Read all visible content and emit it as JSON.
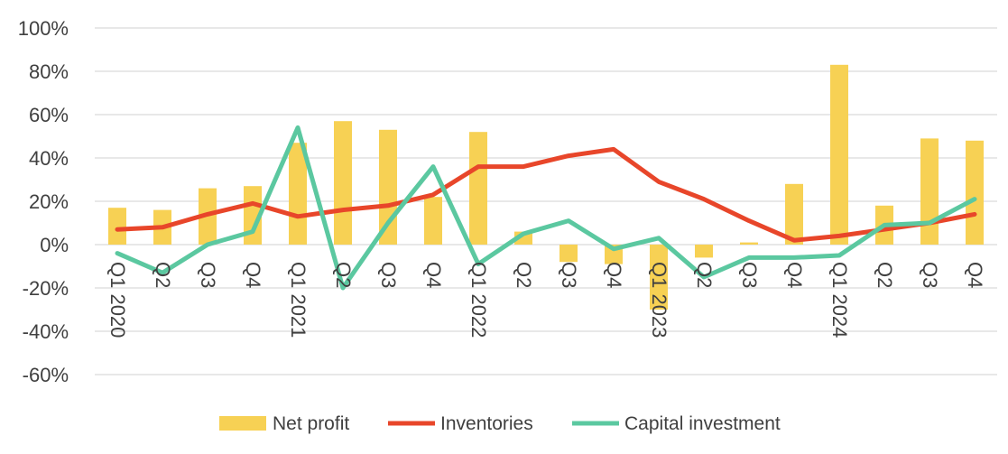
{
  "chart_data": {
    "type": "bar+line",
    "title": "",
    "xlabel": "",
    "ylabel": "",
    "ylim": [
      -60,
      100
    ],
    "yticks": [
      -60,
      -40,
      -20,
      0,
      20,
      40,
      60,
      80,
      100
    ],
    "ytick_labels": [
      "-60%",
      "-40%",
      "-20%",
      "0%",
      "20%",
      "40%",
      "60%",
      "80%",
      "100%"
    ],
    "grid": true,
    "legend_position": "bottom",
    "categories": [
      "Q1 2020",
      "Q2",
      "Q3",
      "Q4",
      "Q1 2021",
      "Q2",
      "Q3",
      "Q4",
      "Q1 2022",
      "Q2",
      "Q3",
      "Q4",
      "Q1 2023",
      "Q2",
      "Q3",
      "Q4",
      "Q1 2024",
      "Q2",
      "Q3",
      "Q4"
    ],
    "series": [
      {
        "name": "Net profit",
        "kind": "bar",
        "color": "#F7D154",
        "values": [
          17,
          16,
          26,
          27,
          47,
          57,
          53,
          22,
          52,
          6,
          -8,
          -9,
          -30,
          -6,
          1,
          28,
          83,
          18,
          49,
          48
        ]
      },
      {
        "name": "Inventories",
        "kind": "line",
        "color": "#E8462A",
        "values": [
          7,
          8,
          14,
          19,
          13,
          16,
          18,
          23,
          36,
          36,
          41,
          44,
          29,
          21,
          11,
          2,
          4,
          7,
          10,
          14
        ]
      },
      {
        "name": "Capital investment",
        "kind": "line",
        "color": "#5BC8A0",
        "values": [
          -4,
          -13,
          0,
          6,
          54,
          -20,
          10,
          36,
          -9,
          5,
          11,
          -2,
          3,
          -15,
          -6,
          -6,
          -5,
          9,
          10,
          21
        ]
      }
    ]
  }
}
